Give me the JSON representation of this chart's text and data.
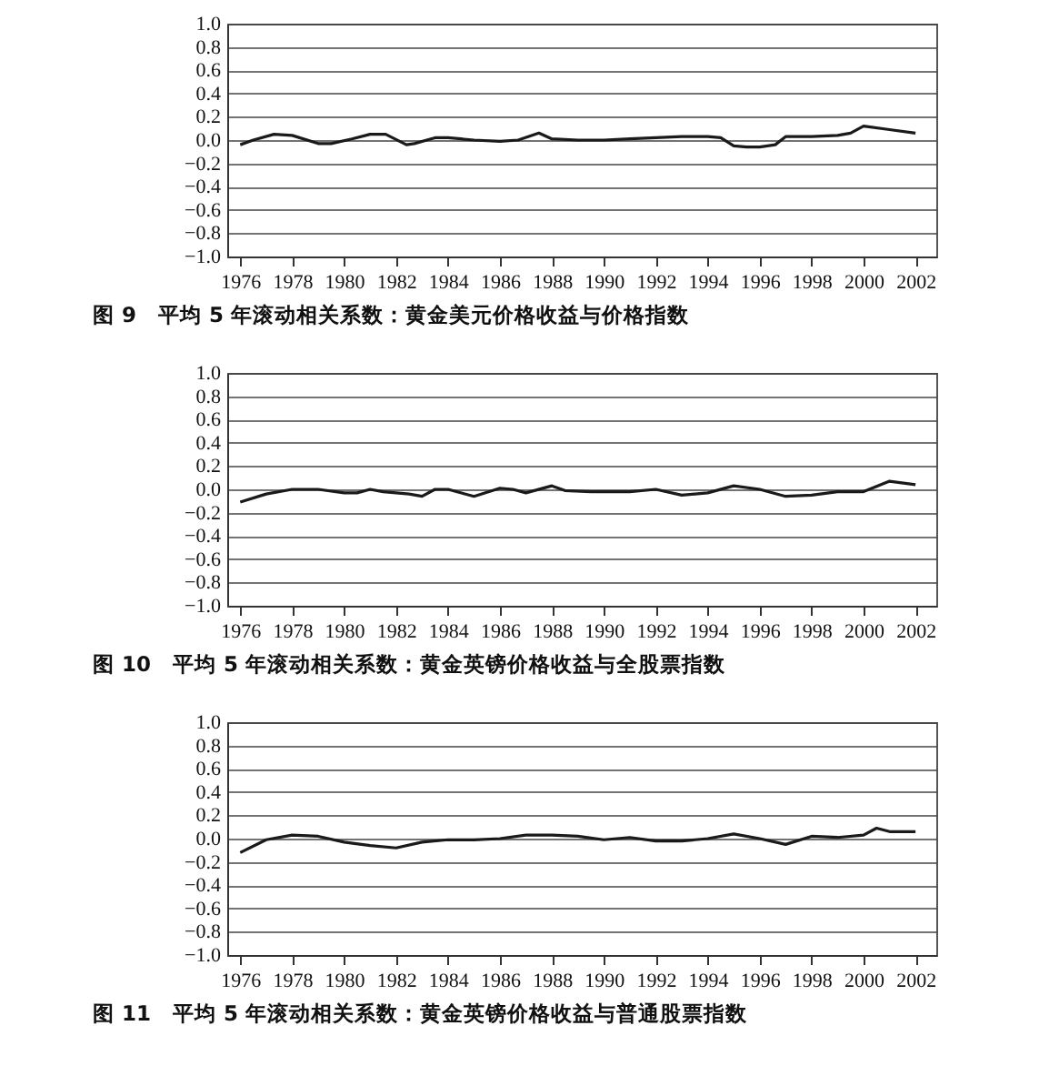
{
  "chart_data": [
    {
      "type": "line",
      "title": "图 9　平均 5 年滚动相关系数：黄金美元价格收益与价格指数",
      "x": [
        1976,
        1976.5,
        1977.3,
        1978,
        1979,
        1979.5,
        1980.3,
        1981,
        1981.6,
        1982.4,
        1982.7,
        1983.5,
        1984,
        1985,
        1986,
        1986.7,
        1987.5,
        1988,
        1989,
        1990,
        1991,
        1992,
        1993,
        1994,
        1994.5,
        1995,
        1995.5,
        1996,
        1996.6,
        1997,
        1998,
        1999,
        1999.5,
        2000,
        2001,
        2002
      ],
      "series": [
        {
          "color": "#1a1a1a",
          "values": [
            -0.04,
            0.0,
            0.05,
            0.04,
            -0.03,
            -0.03,
            0.01,
            0.05,
            0.05,
            -0.04,
            -0.03,
            0.02,
            0.02,
            0.0,
            -0.01,
            0.0,
            0.06,
            0.01,
            0.0,
            0.0,
            0.01,
            0.02,
            0.03,
            0.03,
            0.02,
            -0.05,
            -0.06,
            -0.06,
            -0.04,
            0.03,
            0.03,
            0.04,
            0.06,
            0.12,
            0.09,
            0.06
          ]
        }
      ],
      "xlim": [
        1975.5,
        2002.8
      ],
      "xticks": [
        1976,
        1978,
        1980,
        1982,
        1984,
        1986,
        1988,
        1990,
        1992,
        1994,
        1996,
        1998,
        2000,
        2002
      ],
      "ylim": [
        -1,
        1
      ],
      "yticks": [
        {
          "value": 1,
          "label": "1.0"
        },
        {
          "value": 0.8,
          "label": "0.8"
        },
        {
          "value": 0.6,
          "label": "0.6"
        },
        {
          "value": 0.4,
          "label": "0.4"
        },
        {
          "value": 0.2,
          "label": "0.2"
        },
        {
          "value": 0,
          "label": "0.0"
        },
        {
          "value": -0.2,
          "label": "−0.2"
        },
        {
          "value": -0.4,
          "label": "−0.4"
        },
        {
          "value": -0.6,
          "label": "−0.6"
        },
        {
          "value": -0.8,
          "label": "−0.8"
        },
        {
          "value": -1,
          "label": "−1.0"
        }
      ],
      "grid": "y"
    },
    {
      "type": "line",
      "title": "图 10　平均 5 年滚动相关系数：黄金英镑价格收益与全股票指数",
      "x": [
        1976,
        1977,
        1978,
        1979,
        1980,
        1980.5,
        1981,
        1981.5,
        1982.5,
        1983,
        1983.5,
        1984,
        1985,
        1986,
        1986.5,
        1987,
        1988,
        1988.5,
        1989.5,
        1991,
        1992,
        1993,
        1994,
        1995,
        1996,
        1997,
        1998,
        1999,
        2000,
        2001,
        2002
      ],
      "series": [
        {
          "color": "#1a1a1a",
          "values": [
            -0.11,
            -0.04,
            0.0,
            0.0,
            -0.03,
            -0.03,
            0.0,
            -0.02,
            -0.04,
            -0.06,
            0.0,
            0.0,
            -0.06,
            0.01,
            0.0,
            -0.03,
            0.03,
            -0.01,
            -0.02,
            -0.02,
            0.0,
            -0.05,
            -0.03,
            0.03,
            0.0,
            -0.06,
            -0.05,
            -0.02,
            -0.02,
            0.07,
            0.04
          ]
        }
      ],
      "xlim": [
        1975.5,
        2002.8
      ],
      "xticks": [
        1976,
        1978,
        1980,
        1982,
        1984,
        1986,
        1988,
        1990,
        1992,
        1994,
        1996,
        1998,
        2000,
        2002
      ],
      "ylim": [
        -1,
        1
      ],
      "yticks": [
        {
          "value": 1,
          "label": "1.0"
        },
        {
          "value": 0.8,
          "label": "0.8"
        },
        {
          "value": 0.6,
          "label": "0.6"
        },
        {
          "value": 0.4,
          "label": "0.4"
        },
        {
          "value": 0.2,
          "label": "0.2"
        },
        {
          "value": 0,
          "label": "0.0"
        },
        {
          "value": -0.2,
          "label": "−0.2"
        },
        {
          "value": -0.4,
          "label": "−0.4"
        },
        {
          "value": -0.6,
          "label": "−0.6"
        },
        {
          "value": -0.8,
          "label": "−0.8"
        },
        {
          "value": -1,
          "label": "−1.0"
        }
      ],
      "grid": "y"
    },
    {
      "type": "line",
      "title": "图 11　平均 5 年滚动相关系数：黄金英镑价格收益与普通股票指数",
      "x": [
        1976,
        1977,
        1978,
        1979,
        1980,
        1981,
        1982,
        1983,
        1984,
        1985,
        1986,
        1987,
        1988,
        1989,
        1990,
        1991,
        1992,
        1993,
        1994,
        1995,
        1996,
        1997,
        1998,
        1999,
        2000,
        2000.5,
        2001,
        2002
      ],
      "series": [
        {
          "color": "#1a1a1a",
          "values": [
            -0.12,
            -0.01,
            0.03,
            0.02,
            -0.03,
            -0.06,
            -0.08,
            -0.03,
            -0.01,
            -0.01,
            0.0,
            0.03,
            0.03,
            0.02,
            -0.01,
            0.01,
            -0.02,
            -0.02,
            0.0,
            0.04,
            0.0,
            -0.05,
            0.02,
            0.01,
            0.03,
            0.09,
            0.06,
            0.06
          ]
        }
      ],
      "xlim": [
        1975.5,
        2002.8
      ],
      "xticks": [
        1976,
        1978,
        1980,
        1982,
        1984,
        1986,
        1988,
        1990,
        1992,
        1994,
        1996,
        1998,
        2000,
        2002
      ],
      "ylim": [
        -1,
        1
      ],
      "yticks": [
        {
          "value": 1,
          "label": "1.0"
        },
        {
          "value": 0.8,
          "label": "0.8"
        },
        {
          "value": 0.6,
          "label": "0.6"
        },
        {
          "value": 0.4,
          "label": "0.4"
        },
        {
          "value": 0.2,
          "label": "0.2"
        },
        {
          "value": 0,
          "label": "0.0"
        },
        {
          "value": -0.2,
          "label": "−0.2"
        },
        {
          "value": -0.4,
          "label": "−0.4"
        },
        {
          "value": -0.6,
          "label": "−0.6"
        },
        {
          "value": -0.8,
          "label": "−0.8"
        },
        {
          "value": -1,
          "label": "−1.0"
        }
      ],
      "grid": "y"
    }
  ]
}
